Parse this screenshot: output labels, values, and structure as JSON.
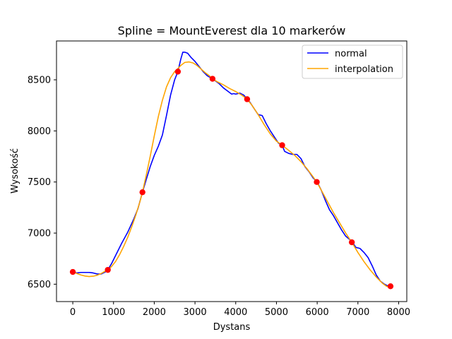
{
  "chart_data": {
    "type": "line",
    "title": "Spline = MountEverest dla 10 markerów",
    "xlabel": "Dystans",
    "ylabel": "Wysokość",
    "xlim": [
      -400,
      8200
    ],
    "ylim": [
      6330,
      8880
    ],
    "xticks": [
      0,
      1000,
      2000,
      3000,
      4000,
      5000,
      6000,
      7000,
      8000
    ],
    "yticks": [
      6500,
      7000,
      7500,
      8000,
      8500
    ],
    "legend_position": "top-right",
    "series": [
      {
        "name": "normal",
        "color": "#0000ff",
        "x": [
          0,
          100,
          200,
          300,
          400,
          500,
          600,
          700,
          800,
          860,
          950,
          1050,
          1200,
          1350,
          1500,
          1600,
          1710,
          1800,
          1900,
          2000,
          2100,
          2200,
          2300,
          2400,
          2500,
          2580,
          2650,
          2700,
          2750,
          2820,
          2900,
          3000,
          3100,
          3200,
          3300,
          3430,
          3500,
          3600,
          3700,
          3800,
          3900,
          3950,
          4000,
          4100,
          4200,
          4280,
          4350,
          4450,
          4550,
          4650,
          4750,
          4850,
          4950,
          5050,
          5140,
          5200,
          5300,
          5400,
          5500,
          5600,
          5700,
          5800,
          5900,
          6000,
          6100,
          6200,
          6300,
          6400,
          6500,
          6600,
          6700,
          6850,
          6950,
          7050,
          7150,
          7250,
          7350,
          7450,
          7550,
          7650,
          7750,
          7800
        ],
        "y": [
          6620,
          6610,
          6615,
          6615,
          6615,
          6610,
          6600,
          6600,
          6620,
          6640,
          6700,
          6780,
          6900,
          7010,
          7140,
          7240,
          7400,
          7520,
          7650,
          7760,
          7850,
          7960,
          8150,
          8350,
          8500,
          8580,
          8700,
          8770,
          8770,
          8760,
          8720,
          8680,
          8630,
          8580,
          8540,
          8510,
          8490,
          8460,
          8420,
          8390,
          8360,
          8365,
          8360,
          8370,
          8350,
          8310,
          8280,
          8220,
          8160,
          8150,
          8070,
          8000,
          7940,
          7880,
          7860,
          7800,
          7780,
          7770,
          7770,
          7730,
          7650,
          7600,
          7540,
          7500,
          7420,
          7320,
          7230,
          7170,
          7100,
          7030,
          6970,
          6920,
          6860,
          6850,
          6810,
          6760,
          6680,
          6590,
          6530,
          6500,
          6480,
          6480
        ]
      },
      {
        "name": "interpolation",
        "color": "#ffa500",
        "x": [
          0,
          100,
          200,
          300,
          400,
          500,
          600,
          700,
          800,
          860,
          950,
          1050,
          1150,
          1250,
          1350,
          1450,
          1550,
          1650,
          1710,
          1800,
          1900,
          2000,
          2100,
          2200,
          2300,
          2400,
          2500,
          2580,
          2650,
          2750,
          2850,
          2950,
          3050,
          3150,
          3250,
          3350,
          3430,
          3550,
          3700,
          3850,
          4000,
          4150,
          4280,
          4400,
          4550,
          4700,
          4850,
          5000,
          5140,
          5300,
          5450,
          5600,
          5750,
          5900,
          5990,
          6100,
          6250,
          6400,
          6550,
          6700,
          6850,
          7000,
          7150,
          7300,
          7450,
          7600,
          7700,
          7800
        ],
        "y": [
          6620,
          6605,
          6590,
          6580,
          6575,
          6578,
          6588,
          6605,
          6628,
          6640,
          6672,
          6722,
          6790,
          6870,
          6960,
          7065,
          7180,
          7310,
          7400,
          7560,
          7750,
          7950,
          8140,
          8300,
          8430,
          8520,
          8580,
          8610,
          8640,
          8670,
          8675,
          8665,
          8640,
          8605,
          8570,
          8540,
          8510,
          8480,
          8450,
          8415,
          8385,
          8350,
          8310,
          8250,
          8160,
          8060,
          7970,
          7900,
          7860,
          7810,
          7760,
          7700,
          7630,
          7550,
          7500,
          7420,
          7310,
          7200,
          7100,
          7000,
          6910,
          6810,
          6720,
          6640,
          6570,
          6510,
          6480,
          6470
        ]
      },
      {
        "name": "markers",
        "color": "#ff0000",
        "x": [
          0,
          860,
          1710,
          2580,
          3430,
          4280,
          5140,
          5990,
          6850,
          7800
        ],
        "y": [
          6620,
          6640,
          7400,
          8580,
          8510,
          8310,
          7860,
          7500,
          6910,
          6480
        ]
      }
    ]
  }
}
